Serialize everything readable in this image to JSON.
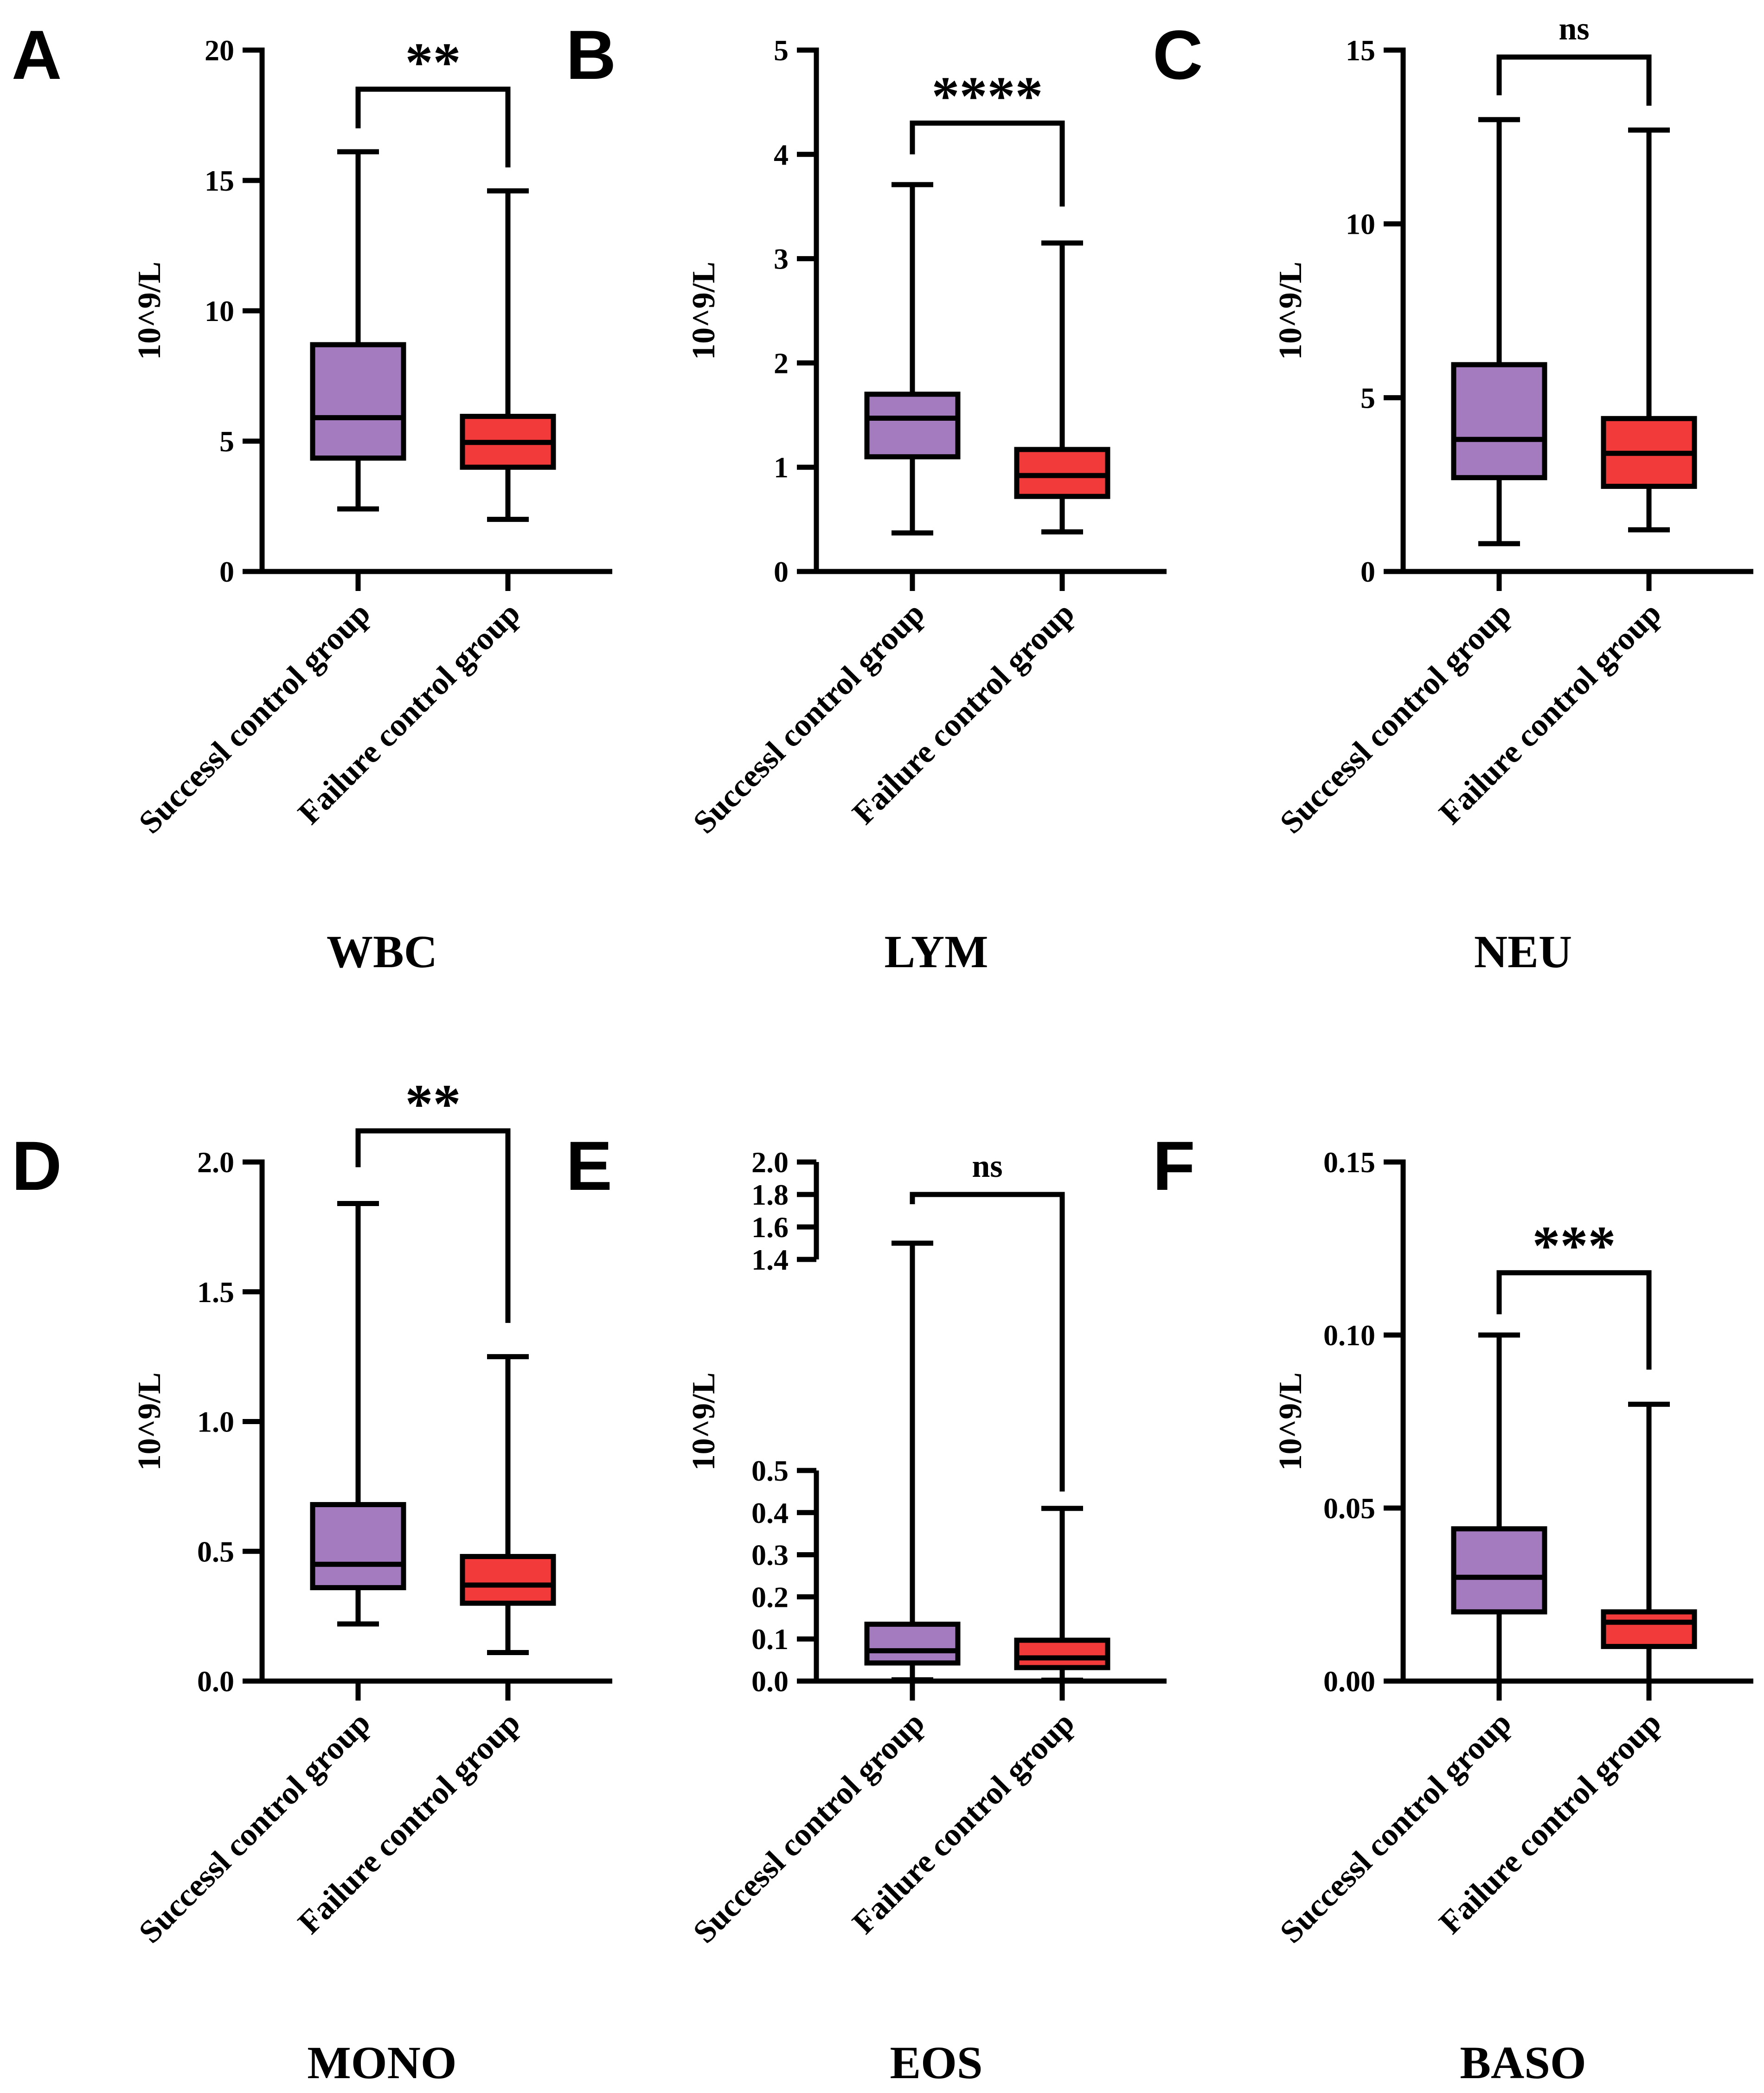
{
  "figure": {
    "categories": [
      "Successl control group",
      "Failure control group"
    ],
    "colors": {
      "success": "#a47bbf",
      "failure": "#f23a3a",
      "line": "#000000"
    }
  },
  "chart_data": [
    {
      "panel": "A",
      "type": "box",
      "title": "WBC",
      "ylabel": "10^9/L",
      "ylim": [
        0,
        20
      ],
      "yticks": [
        0,
        5,
        10,
        15,
        20
      ],
      "ytick_labels": [
        "0",
        "5",
        "10",
        "15",
        "20"
      ],
      "groups": [
        {
          "name": "Successl control group",
          "min": 2.4,
          "q1": 4.35,
          "median": 5.9,
          "q3": 8.7,
          "max": 16.1
        },
        {
          "name": "Failure control group",
          "min": 2.0,
          "q1": 4.0,
          "median": 4.95,
          "q3": 5.95,
          "max": 14.6
        }
      ],
      "significance": "**",
      "bracket_y": 18.5,
      "bracket_drop": [
        17.0,
        15.5
      ]
    },
    {
      "panel": "B",
      "type": "box",
      "title": "LYM",
      "ylabel": "10^9/L",
      "ylim": [
        0,
        5
      ],
      "yticks": [
        0,
        1,
        2,
        3,
        4,
        5
      ],
      "ytick_labels": [
        "0",
        "1",
        "2",
        "3",
        "4",
        "5"
      ],
      "groups": [
        {
          "name": "Successl control group",
          "min": 0.37,
          "q1": 1.1,
          "median": 1.47,
          "q3": 1.7,
          "max": 3.71
        },
        {
          "name": "Failure control group",
          "min": 0.38,
          "q1": 0.72,
          "median": 0.92,
          "q3": 1.17,
          "max": 3.15
        }
      ],
      "significance": "****",
      "bracket_y": 4.3,
      "bracket_drop": [
        4.0,
        3.5
      ]
    },
    {
      "panel": "C",
      "type": "box",
      "title": "NEU",
      "ylabel": "10^9/L",
      "ylim": [
        0,
        15
      ],
      "yticks": [
        0,
        5,
        10,
        15
      ],
      "ytick_labels": [
        "0",
        "5",
        "10",
        "15"
      ],
      "groups": [
        {
          "name": "Successl control group",
          "min": 0.8,
          "q1": 2.7,
          "median": 3.8,
          "q3": 5.95,
          "max": 13.0
        },
        {
          "name": "Failure control group",
          "min": 1.2,
          "q1": 2.45,
          "median": 3.4,
          "q3": 4.4,
          "max": 12.7
        }
      ],
      "significance": "ns",
      "bracket_y": 14.8,
      "bracket_drop": [
        13.7,
        13.4
      ]
    },
    {
      "panel": "D",
      "type": "box",
      "title": "MONO",
      "ylabel": "10^9/L",
      "ylim": [
        0.0,
        2.0
      ],
      "yticks": [
        0.0,
        0.5,
        1.0,
        1.5,
        2.0
      ],
      "ytick_labels": [
        "0.0",
        "0.5",
        "1.0",
        "1.5",
        "2.0"
      ],
      "groups": [
        {
          "name": "Successl control group",
          "min": 0.22,
          "q1": 0.36,
          "median": 0.45,
          "q3": 0.68,
          "max": 1.84
        },
        {
          "name": "Failure control group",
          "min": 0.11,
          "q1": 0.3,
          "median": 0.37,
          "q3": 0.48,
          "max": 1.25
        }
      ],
      "significance": "**",
      "bracket_y": 2.12,
      "bracket_drop": [
        1.98,
        1.38
      ]
    },
    {
      "panel": "E",
      "type": "box",
      "title": "EOS",
      "ylabel": "10^9/L",
      "ylim": [
        0.0,
        2.0
      ],
      "broken_axis": {
        "lower": [
          0.0,
          0.5
        ],
        "upper": [
          1.4,
          2.0
        ]
      },
      "yticks": [
        0.0,
        0.1,
        0.2,
        0.3,
        0.4,
        0.5,
        1.4,
        1.6,
        1.8,
        2.0
      ],
      "ytick_labels": [
        "0.0",
        "0.1",
        "0.2",
        "0.3",
        "0.4",
        "0.5",
        "1.4",
        "1.6",
        "1.8",
        "2.0"
      ],
      "groups": [
        {
          "name": "Successl control group",
          "min": 0.003,
          "q1": 0.043,
          "median": 0.072,
          "q3": 0.135,
          "max": 1.5
        },
        {
          "name": "Failure control group",
          "min": 0.002,
          "q1": 0.032,
          "median": 0.055,
          "q3": 0.097,
          "max": 0.41
        }
      ],
      "significance": "ns",
      "bracket_y": 1.8,
      "bracket_drop": [
        1.74,
        0.45
      ]
    },
    {
      "panel": "F",
      "type": "box",
      "title": "BASO",
      "ylabel": "10^9/L",
      "ylim": [
        0.0,
        0.15
      ],
      "yticks": [
        0.0,
        0.05,
        0.1,
        0.15
      ],
      "ytick_labels": [
        "0.00",
        "0.05",
        "0.10",
        "0.15"
      ],
      "groups": [
        {
          "name": "Successl control group",
          "min": 0.0,
          "q1": 0.02,
          "median": 0.03,
          "q3": 0.044,
          "max": 0.1
        },
        {
          "name": "Failure control group",
          "min": 0.0,
          "q1": 0.01,
          "median": 0.017,
          "q3": 0.02,
          "max": 0.08
        }
      ],
      "significance": "***",
      "bracket_y": 0.118,
      "bracket_drop": [
        0.106,
        0.09
      ]
    }
  ]
}
